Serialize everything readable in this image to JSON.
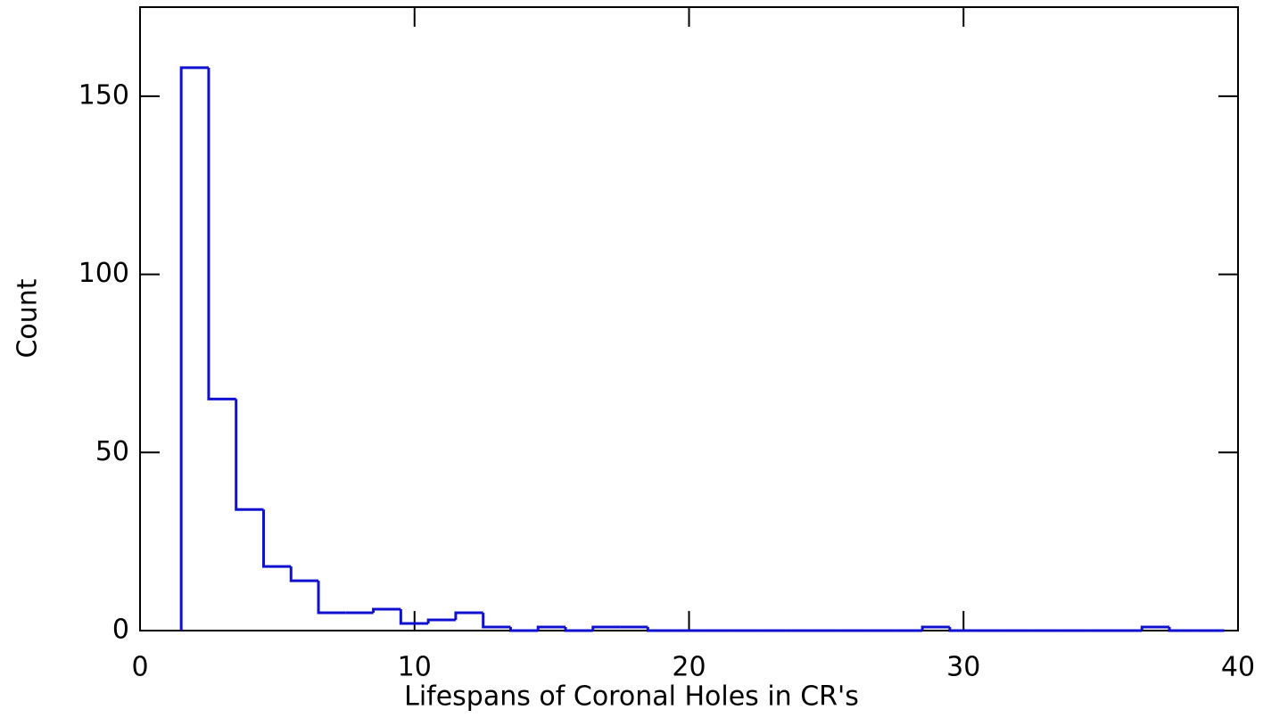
{
  "chart_data": {
    "type": "histogram",
    "xlabel": "Lifespans of Coronal Holes in CR's",
    "ylabel": "Count",
    "bins": [
      1.5,
      2.5,
      3.5,
      4.5,
      5.5,
      6.5,
      7.5,
      8.5,
      9.5,
      10.5,
      11.5,
      12.5,
      13.5,
      14.5,
      15.5,
      16.5,
      17.5,
      18.5,
      19.5,
      20.5,
      21.5,
      22.5,
      23.5,
      24.5,
      25.5,
      26.5,
      27.5,
      28.5,
      29.5,
      30.5,
      31.5,
      32.5,
      33.5,
      34.5,
      35.5,
      36.5,
      37.5,
      38.5,
      39.5
    ],
    "values": [
      158,
      65,
      34,
      18,
      14,
      5,
      5,
      6,
      2,
      3,
      5,
      1,
      0,
      1,
      0,
      1,
      1,
      0,
      0,
      0,
      0,
      0,
      0,
      0,
      0,
      0,
      0,
      1,
      0,
      0,
      0,
      0,
      0,
      0,
      0,
      1,
      0,
      0
    ],
    "color": "#1010d0",
    "xlim": [
      0,
      40
    ],
    "xticks": [
      0,
      10,
      20,
      30,
      40
    ],
    "ylim": [
      0,
      175
    ],
    "yticks": [
      0,
      50,
      100,
      150
    ],
    "grid": false
  }
}
